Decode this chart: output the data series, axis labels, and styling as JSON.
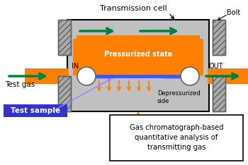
{
  "title": "Transmission cell",
  "bolt_label": "Bolt",
  "in_label": "IN",
  "out_label": "OUT",
  "test_gas_label": "Test gas",
  "test_sample_label": "Test sample",
  "pressurized_label": "Pressurized state",
  "depressurized_label": "Depressurized\nside",
  "gc_text": "Gas chromatograph-based\nquantitative analysis of\ntransmitting gas",
  "bg_color": "#ffffff",
  "gray_body": "#c0c0c0",
  "orange": "#ff8000",
  "green": "#008040",
  "blue_arrow": "#8888ff",
  "blue_bg": "#3333cc",
  "white": "#ffffff",
  "black": "#000000",
  "dark_gray": "#606060"
}
